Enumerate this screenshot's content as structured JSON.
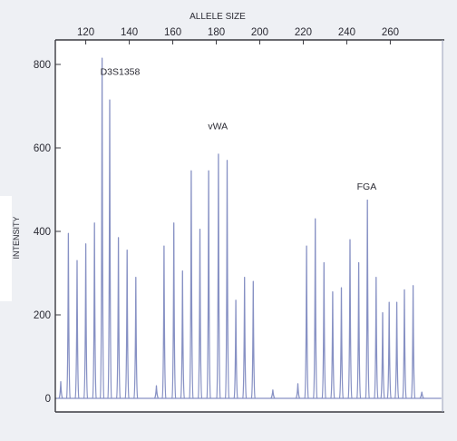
{
  "chart_data": {
    "type": "line",
    "title": "",
    "xlabel": "ALLELE SIZE",
    "ylabel": "INTENSITY",
    "xlim": [
      106,
      284
    ],
    "ylim": [
      0,
      850
    ],
    "x_ticks": [
      120,
      140,
      160,
      180,
      200,
      220,
      240,
      260
    ],
    "y_ticks": [
      0,
      200,
      400,
      600,
      800
    ],
    "grid": false,
    "line_color": "#8791c4",
    "annotations": [
      {
        "text": "D3S1358",
        "x": 127.5,
        "y": 775
      },
      {
        "text": "vWA",
        "x": 177,
        "y": 645
      },
      {
        "text": "FGA",
        "x": 245.5,
        "y": 500
      }
    ],
    "series": [
      {
        "peaks": [
          {
            "x": 108.5,
            "y": 40
          },
          {
            "x": 112,
            "y": 395
          },
          {
            "x": 116,
            "y": 330
          },
          {
            "x": 120,
            "y": 370
          },
          {
            "x": 124,
            "y": 420
          },
          {
            "x": 127.5,
            "y": 815
          },
          {
            "x": 131,
            "y": 715
          },
          {
            "x": 135,
            "y": 385
          },
          {
            "x": 139,
            "y": 355
          },
          {
            "x": 143,
            "y": 290
          },
          {
            "x": 152.5,
            "y": 30
          },
          {
            "x": 156,
            "y": 365
          },
          {
            "x": 160.5,
            "y": 420
          },
          {
            "x": 164.5,
            "y": 305
          },
          {
            "x": 168.5,
            "y": 545
          },
          {
            "x": 172.5,
            "y": 405
          },
          {
            "x": 176.5,
            "y": 545
          },
          {
            "x": 181,
            "y": 585
          },
          {
            "x": 185,
            "y": 570
          },
          {
            "x": 189,
            "y": 235
          },
          {
            "x": 193,
            "y": 290
          },
          {
            "x": 197,
            "y": 280
          },
          {
            "x": 206,
            "y": 20
          },
          {
            "x": 217.5,
            "y": 35
          },
          {
            "x": 221.5,
            "y": 365
          },
          {
            "x": 225.5,
            "y": 430
          },
          {
            "x": 229.5,
            "y": 325
          },
          {
            "x": 233.5,
            "y": 255
          },
          {
            "x": 237.5,
            "y": 265
          },
          {
            "x": 241.5,
            "y": 380
          },
          {
            "x": 245.5,
            "y": 325
          },
          {
            "x": 249.5,
            "y": 475
          },
          {
            "x": 253.5,
            "y": 290
          },
          {
            "x": 256.5,
            "y": 205
          },
          {
            "x": 259.5,
            "y": 230
          },
          {
            "x": 263,
            "y": 230
          },
          {
            "x": 266.5,
            "y": 260
          },
          {
            "x": 270.5,
            "y": 270
          },
          {
            "x": 274.5,
            "y": 15
          }
        ]
      }
    ]
  }
}
